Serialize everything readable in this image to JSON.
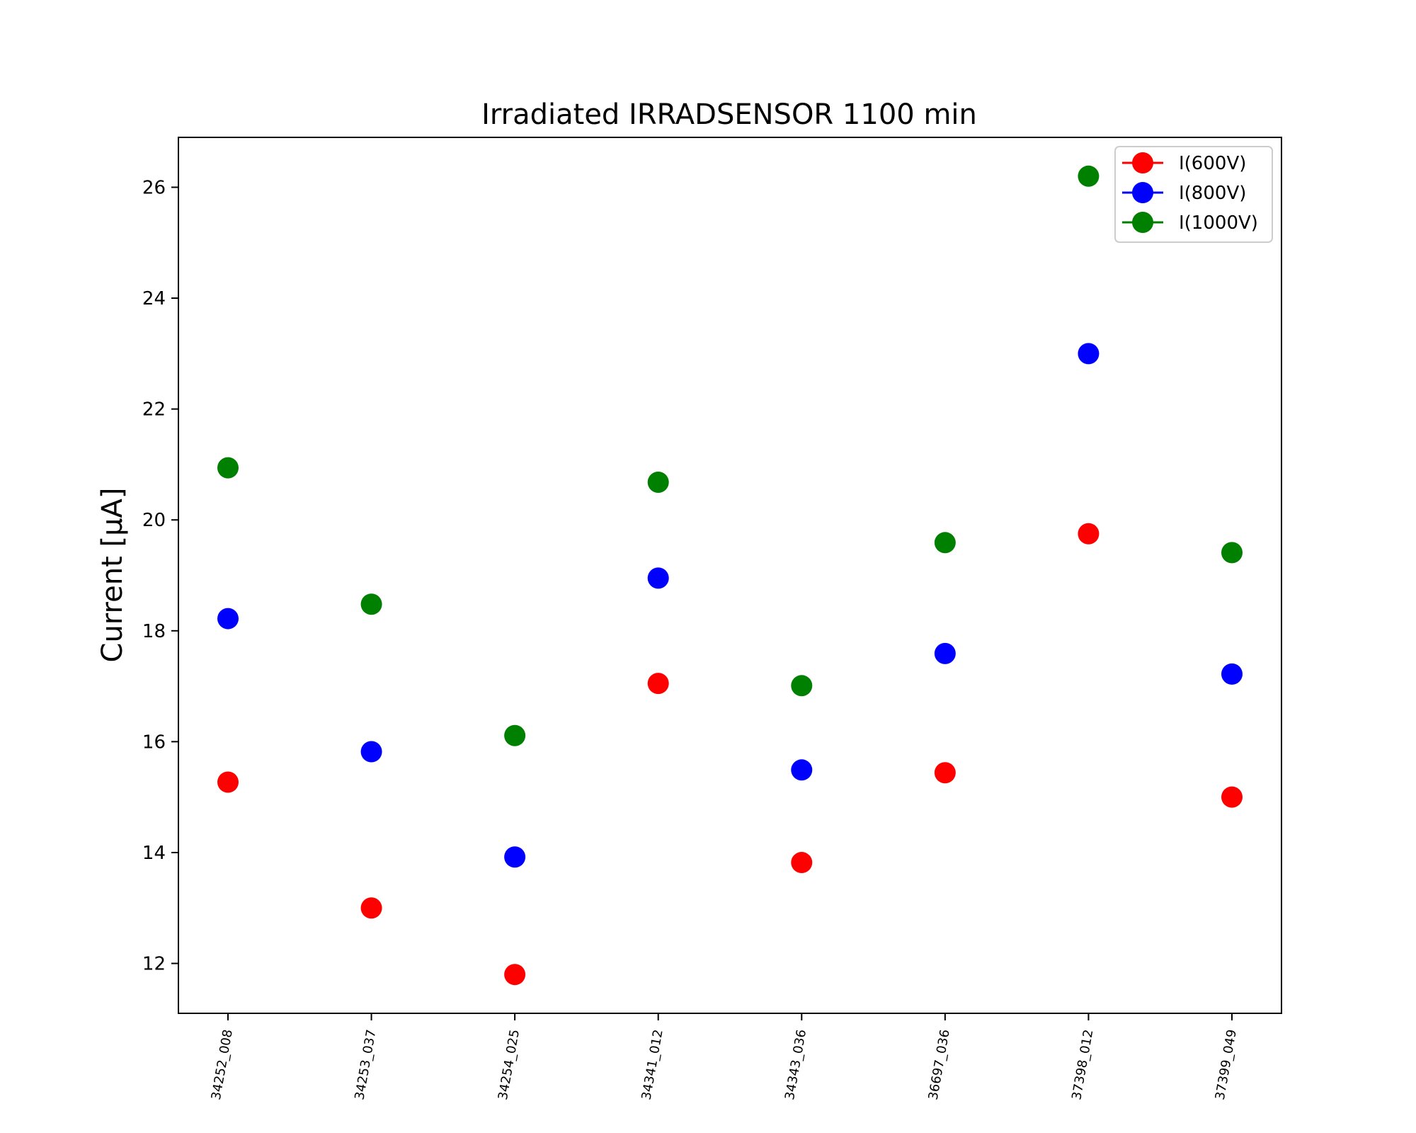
{
  "chart_data": {
    "type": "scatter",
    "title": "Irradiated IRRADSENSOR 1100 min",
    "xlabel": "",
    "ylabel": "Current [μA]",
    "categories": [
      "34252_008",
      "34253_037",
      "34254_025",
      "34341_012",
      "34343_036",
      "36697_036",
      "37398_012",
      "37399_049"
    ],
    "ylim": [
      11.1,
      26.9
    ],
    "yticks": [
      12,
      14,
      16,
      18,
      20,
      22,
      24,
      26
    ],
    "grid": false,
    "legend_position": "top-right",
    "series": [
      {
        "name": "I(600V)",
        "color": "#ff0000",
        "values": [
          15.27,
          13.0,
          11.8,
          17.05,
          13.82,
          15.44,
          19.75,
          15.0
        ]
      },
      {
        "name": "I(800V)",
        "color": "#0000ff",
        "values": [
          18.22,
          15.82,
          13.92,
          18.95,
          15.49,
          17.59,
          23.0,
          17.22
        ]
      },
      {
        "name": "I(1000V)",
        "color": "#008000",
        "values": [
          20.94,
          18.48,
          16.11,
          20.68,
          17.01,
          19.59,
          26.2,
          19.41
        ]
      }
    ]
  }
}
